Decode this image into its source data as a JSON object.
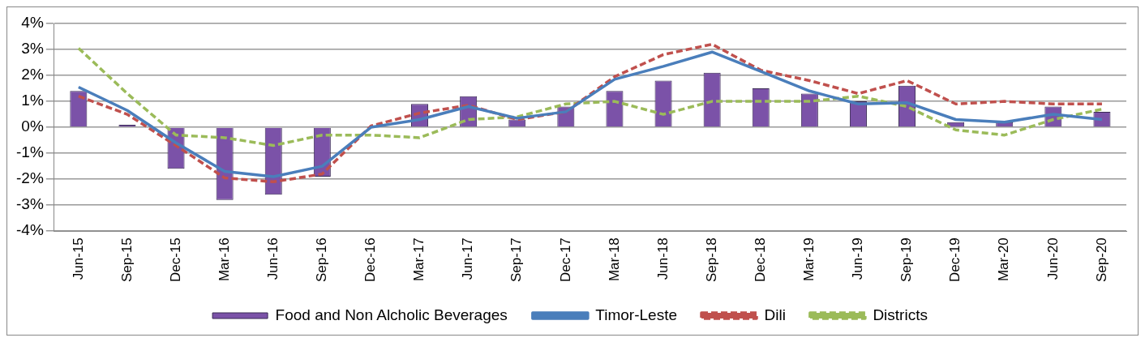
{
  "chart_data": {
    "type": "bar",
    "categories": [
      "Jun-15",
      "Sep-15",
      "Dec-15",
      "Mar-16",
      "Jun-16",
      "Sep-16",
      "Dec-16",
      "Mar-17",
      "Jun-17",
      "Sep-17",
      "Dec-17",
      "Mar-18",
      "Jun-18",
      "Sep-18",
      "Dec-18",
      "Mar-19",
      "Jun-19",
      "Sep-19",
      "Dec-19",
      "Mar-20",
      "Jun-20",
      "Sep-20"
    ],
    "series": [
      {
        "name": "Food and Non Alcholic Beverages",
        "color": "#7b52a8",
        "values": [
          1.4,
          0.1,
          -1.6,
          -2.8,
          -2.6,
          -1.9,
          0,
          0.9,
          1.2,
          0.3,
          0.8,
          1.4,
          1.8,
          2.1,
          1.5,
          1.3,
          1.0,
          1.6,
          0.2,
          0.2,
          0.8,
          0.6
        ]
      },
      {
        "name": "Timor-Leste",
        "type": "line",
        "color": "#4a7ebb",
        "line_style": "solid",
        "values": [
          1.55,
          0.65,
          -0.6,
          -1.7,
          -1.9,
          -1.5,
          0.0,
          0.3,
          0.8,
          0.35,
          0.6,
          1.85,
          2.35,
          2.9,
          2.15,
          1.4,
          0.9,
          0.95,
          0.3,
          0.2,
          0.5,
          0.3
        ]
      },
      {
        "name": "Dili",
        "type": "line",
        "color": "#c0504d",
        "line_style": "dashed",
        "values": [
          1.2,
          0.5,
          -0.7,
          -1.95,
          -2.1,
          -1.8,
          0.05,
          0.55,
          0.85,
          0.3,
          0.6,
          1.95,
          2.8,
          3.2,
          2.2,
          1.8,
          1.3,
          1.8,
          0.9,
          1.0,
          0.9,
          0.9
        ]
      },
      {
        "name": "Districts",
        "type": "line",
        "color": "#9bbb59",
        "line_style": "dashed",
        "values": [
          3.05,
          1.3,
          -0.3,
          -0.4,
          -0.7,
          -0.3,
          -0.3,
          -0.4,
          0.3,
          0.4,
          0.9,
          1.0,
          0.5,
          1.0,
          1.0,
          1.0,
          1.2,
          0.8,
          -0.1,
          -0.3,
          0.3,
          0.7
        ]
      }
    ],
    "ylim": [
      -4,
      4
    ],
    "yticks": [
      {
        "value": -4,
        "label": "-4%"
      },
      {
        "value": -3,
        "label": "-3%"
      },
      {
        "value": -2,
        "label": "-2%"
      },
      {
        "value": -1,
        "label": "-1%"
      },
      {
        "value": 0,
        "label": "0%"
      },
      {
        "value": 1,
        "label": "1%"
      },
      {
        "value": 2,
        "label": "2%"
      },
      {
        "value": 3,
        "label": "3%"
      },
      {
        "value": 4,
        "label": "4%"
      }
    ],
    "grid": "y",
    "legend": "bottom",
    "marker": "none"
  }
}
